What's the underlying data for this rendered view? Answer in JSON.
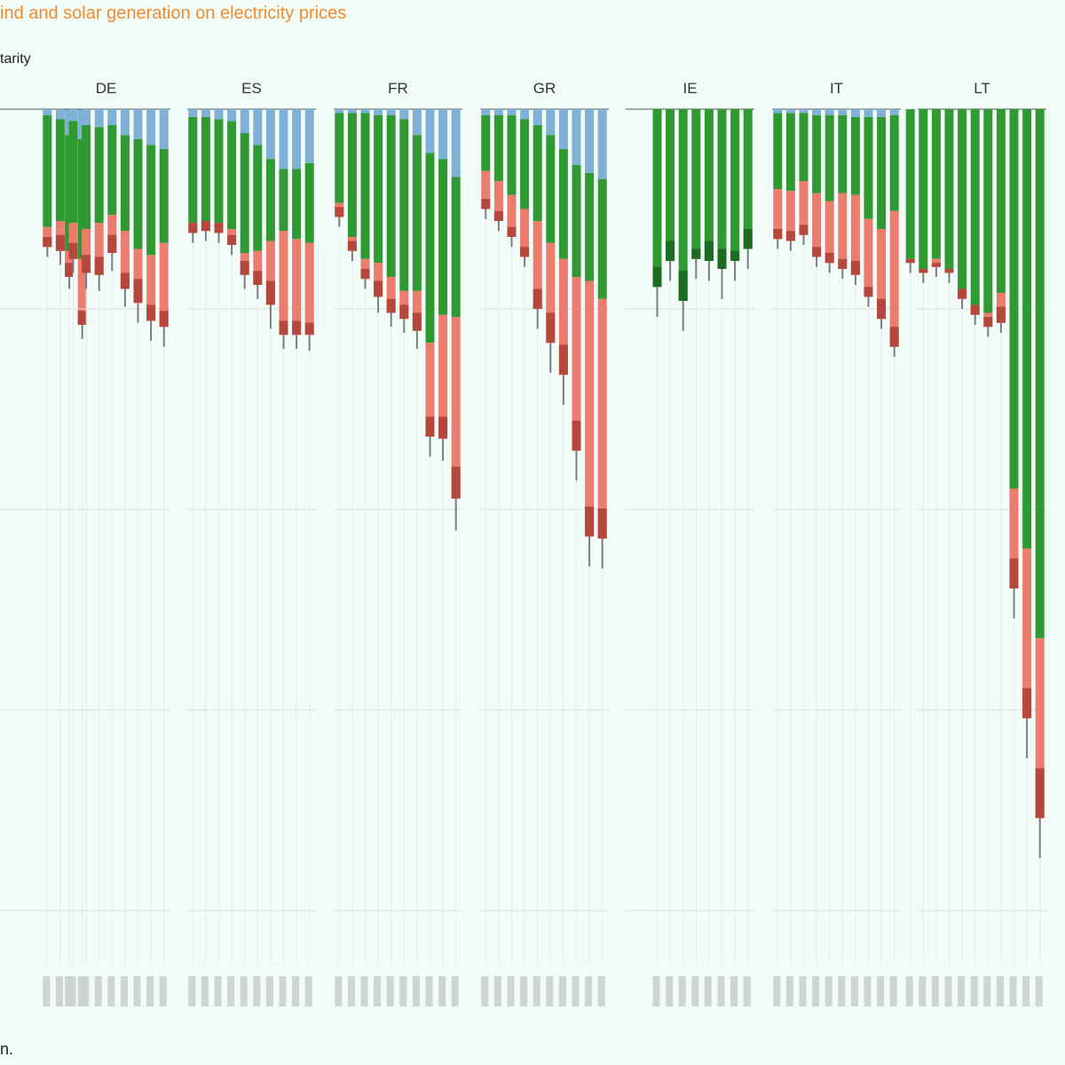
{
  "header": {
    "title": "ind and solar generation on electricity prices",
    "subtitle": "tarity"
  },
  "footnote": "n.",
  "colors": {
    "blue": "#7fb0d6",
    "green": "#2e9a31",
    "salmon": "#ec7d6e",
    "dark_red": "#b5473c",
    "whisker": "#7d7d7d",
    "grid": "#dcdcdc"
  },
  "chart_data": {
    "type": "bar",
    "stacked": true,
    "orientation": "downward",
    "ylim": [
      0,
      100
    ],
    "grid": true,
    "panels": [
      {
        "label": "",
        "bars": [
          {
            "blue": 13,
            "green": 58,
            "salmon": 13,
            "dark": 7,
            "whisker": 6
          },
          {
            "blue": 15,
            "green": 60,
            "salmon": 33,
            "dark": 7,
            "whisker": 7
          }
        ]
      },
      {
        "label": "DE",
        "bars": [
          {
            "blue": 3,
            "green": 56,
            "salmon": 10,
            "dark": 5,
            "whisker": 5
          },
          {
            "blue": 5,
            "green": 51,
            "salmon": 15,
            "dark": 8,
            "whisker": 7
          },
          {
            "blue": 6,
            "green": 51,
            "salmon": 18,
            "dark": 8,
            "whisker": 7
          },
          {
            "blue": 8,
            "green": 52,
            "salmon": 22,
            "dark": 9,
            "whisker": 8
          },
          {
            "blue": 9,
            "green": 48,
            "salmon": 26,
            "dark": 9,
            "whisker": 8
          },
          {
            "blue": 8,
            "green": 45,
            "salmon": 19,
            "dark": 9,
            "whisker": 9
          },
          {
            "blue": 13,
            "green": 48,
            "salmon": 29,
            "dark": 8,
            "whisker": 9
          },
          {
            "blue": 15,
            "green": 55,
            "salmon": 27,
            "dark": 12,
            "whisker": 10
          },
          {
            "blue": 18,
            "green": 55,
            "salmon": 33,
            "dark": 8,
            "whisker": 10
          },
          {
            "blue": 20,
            "green": 47,
            "salmon": 42,
            "dark": 8,
            "whisker": 10
          }
        ]
      },
      {
        "label": "ES",
        "bars": [
          {
            "blue": 4,
            "green": 53,
            "salmon": 5,
            "dark": 5,
            "whisker": 5
          },
          {
            "blue": 4,
            "green": 52,
            "salmon": 5,
            "dark": 5,
            "whisker": 5
          },
          {
            "blue": 5,
            "green": 52,
            "salmon": 5,
            "dark": 5,
            "whisker": 5
          },
          {
            "blue": 6,
            "green": 54,
            "salmon": 8,
            "dark": 5,
            "whisker": 5
          },
          {
            "blue": 12,
            "green": 60,
            "salmon": 11,
            "dark": 7,
            "whisker": 7
          },
          {
            "blue": 18,
            "green": 53,
            "salmon": 17,
            "dark": 7,
            "whisker": 7
          },
          {
            "blue": 25,
            "green": 41,
            "salmon": 32,
            "dark": 12,
            "whisker": 12
          },
          {
            "blue": 30,
            "green": 31,
            "salmon": 52,
            "dark": 7,
            "whisker": 7
          },
          {
            "blue": 30,
            "green": 35,
            "salmon": 48,
            "dark": 7,
            "whisker": 7
          },
          {
            "blue": 27,
            "green": 40,
            "salmon": 46,
            "dark": 6,
            "whisker": 8
          }
        ]
      },
      {
        "label": "FR",
        "bars": [
          {
            "blue": 2,
            "green": 45,
            "salmon": 7,
            "dark": 5,
            "whisker": 5
          },
          {
            "blue": 2,
            "green": 62,
            "salmon": 7,
            "dark": 5,
            "whisker": 5
          },
          {
            "blue": 2,
            "green": 73,
            "salmon": 10,
            "dark": 5,
            "whisker": 5
          },
          {
            "blue": 3,
            "green": 74,
            "salmon": 17,
            "dark": 8,
            "whisker": 8
          },
          {
            "blue": 3,
            "green": 81,
            "salmon": 18,
            "dark": 7,
            "whisker": 7
          },
          {
            "blue": 5,
            "green": 86,
            "salmon": 14,
            "dark": 7,
            "whisker": 7
          },
          {
            "blue": 13,
            "green": 78,
            "salmon": 20,
            "dark": 9,
            "whisker": 9
          },
          {
            "blue": 22,
            "green": 95,
            "salmon": 47,
            "dark": 10,
            "whisker": 10
          },
          {
            "blue": 25,
            "green": 78,
            "salmon": 62,
            "dark": 11,
            "whisker": 11
          },
          {
            "blue": 34,
            "green": 70,
            "salmon": 91,
            "dark": 16,
            "whisker": 16
          }
        ]
      },
      {
        "label": "GR",
        "bars": [
          {
            "blue": 3,
            "green": 28,
            "salmon": 19,
            "dark": 5,
            "whisker": 5
          },
          {
            "blue": 3,
            "green": 33,
            "salmon": 20,
            "dark": 5,
            "whisker": 5
          },
          {
            "blue": 3,
            "green": 40,
            "salmon": 21,
            "dark": 5,
            "whisker": 5
          },
          {
            "blue": 5,
            "green": 45,
            "salmon": 24,
            "dark": 5,
            "whisker": 5
          },
          {
            "blue": 8,
            "green": 48,
            "salmon": 44,
            "dark": 10,
            "whisker": 10
          },
          {
            "blue": 13,
            "green": 54,
            "salmon": 50,
            "dark": 15,
            "whisker": 15
          },
          {
            "blue": 20,
            "green": 55,
            "salmon": 58,
            "dark": 15,
            "whisker": 15
          },
          {
            "blue": 28,
            "green": 56,
            "salmon": 87,
            "dark": 15,
            "whisker": 15
          },
          {
            "blue": 32,
            "green": 54,
            "salmon": 128,
            "dark": 15,
            "whisker": 15
          },
          {
            "blue": 35,
            "green": 60,
            "salmon": 120,
            "dark": 15,
            "whisker": 15
          }
        ]
      },
      {
        "label": "IE",
        "bars": [
          {
            "blue": 0,
            "green": 89,
            "salmon": 0,
            "dark": 10,
            "whisker": 15
          },
          {
            "blue": 0,
            "green": 76,
            "salmon": 0,
            "dark": 10,
            "whisker": 10
          },
          {
            "blue": 0,
            "green": 96,
            "salmon": 0,
            "dark": 15,
            "whisker": 15
          },
          {
            "blue": 0,
            "green": 75,
            "salmon": 0,
            "dark": 5,
            "whisker": 10
          },
          {
            "blue": 0,
            "green": 76,
            "salmon": 0,
            "dark": 10,
            "whisker": 10
          },
          {
            "blue": 0,
            "green": 80,
            "salmon": 0,
            "dark": 10,
            "whisker": 15
          },
          {
            "blue": 0,
            "green": 76,
            "salmon": 0,
            "dark": 5,
            "whisker": 10
          },
          {
            "blue": 0,
            "green": 70,
            "salmon": 0,
            "dark": 10,
            "whisker": 10
          }
        ]
      },
      {
        "label": "IT",
        "bars": [
          {
            "blue": 2,
            "green": 38,
            "salmon": 25,
            "dark": 5,
            "whisker": 5
          },
          {
            "blue": 2,
            "green": 39,
            "salmon": 25,
            "dark": 5,
            "whisker": 5
          },
          {
            "blue": 2,
            "green": 34,
            "salmon": 27,
            "dark": 5,
            "whisker": 5
          },
          {
            "blue": 3,
            "green": 39,
            "salmon": 32,
            "dark": 5,
            "whisker": 5
          },
          {
            "blue": 3,
            "green": 43,
            "salmon": 31,
            "dark": 5,
            "whisker": 5
          },
          {
            "blue": 3,
            "green": 39,
            "salmon": 38,
            "dark": 5,
            "whisker": 5
          },
          {
            "blue": 4,
            "green": 39,
            "salmon": 40,
            "dark": 7,
            "whisker": 5
          },
          {
            "blue": 4,
            "green": 51,
            "salmon": 39,
            "dark": 5,
            "whisker": 5
          },
          {
            "blue": 4,
            "green": 56,
            "salmon": 45,
            "dark": 10,
            "whisker": 5
          },
          {
            "blue": 3,
            "green": 48,
            "salmon": 68,
            "dark": 10,
            "whisker": 5
          }
        ]
      },
      {
        "label": "LT",
        "bars": [
          {
            "blue": 0,
            "green": 75,
            "salmon": 2,
            "dark": 2,
            "whisker": 5
          },
          {
            "blue": 0,
            "green": 80,
            "salmon": 2,
            "dark": 2,
            "whisker": 5
          },
          {
            "blue": 0,
            "green": 75,
            "salmon": 4,
            "dark": 2,
            "whisker": 5
          },
          {
            "blue": 0,
            "green": 80,
            "salmon": 2,
            "dark": 2,
            "whisker": 5
          },
          {
            "blue": 0,
            "green": 90,
            "salmon": 5,
            "dark": 5,
            "whisker": 5
          },
          {
            "blue": 0,
            "green": 98,
            "salmon": 5,
            "dark": 5,
            "whisker": 5
          },
          {
            "blue": 0,
            "green": 102,
            "salmon": 7,
            "dark": 5,
            "whisker": 5
          },
          {
            "blue": 0,
            "green": 92,
            "salmon": 15,
            "dark": 8,
            "whisker": 5
          },
          {
            "blue": 0,
            "green": 190,
            "salmon": 50,
            "dark": 15,
            "whisker": 15
          },
          {
            "blue": 0,
            "green": 220,
            "salmon": 85,
            "dark": 15,
            "whisker": 20
          },
          {
            "blue": 0,
            "green": 265,
            "salmon": 90,
            "dark": 25,
            "whisker": 20
          }
        ]
      }
    ]
  }
}
